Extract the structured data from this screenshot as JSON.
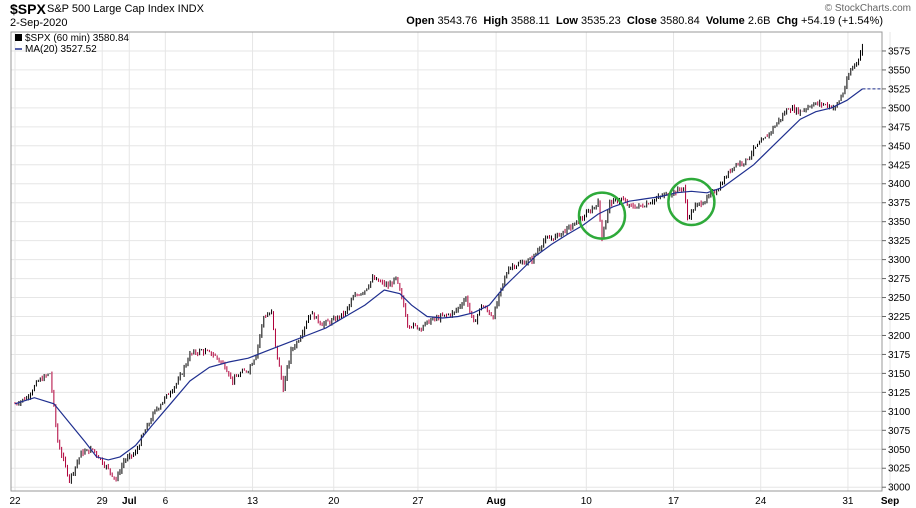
{
  "header": {
    "symbol": "$SPX",
    "name": "S&P 500 Large Cap Index INDX",
    "date": "2-Sep-2020",
    "open_label": "Open",
    "open": "3543.76",
    "high_label": "High",
    "high": "3588.11",
    "low_label": "Low",
    "low": "3535.23",
    "close_label": "Close",
    "close": "3580.84",
    "volume_label": "Volume",
    "volume": "2.6B",
    "chg_label": "Chg",
    "chg": "+54.19 (+1.54%)",
    "copyright": "© StockCharts.com"
  },
  "legend": {
    "price": "$SPX (60 min) 3580.84",
    "ma": "MA(20) 3527.52"
  },
  "colors": {
    "up": "#000000",
    "down": "#b0003a",
    "ma": "#1f2f8f",
    "grid": "#e6e6e6",
    "circle": "#2eaa3a"
  },
  "chart_data": {
    "type": "candlestick",
    "title": "$SPX",
    "ylim": [
      2995,
      3600
    ],
    "yticks": [
      3000,
      3025,
      3050,
      3075,
      3100,
      3125,
      3150,
      3175,
      3200,
      3225,
      3250,
      3275,
      3300,
      3325,
      3350,
      3375,
      3400,
      3425,
      3450,
      3475,
      3500,
      3525,
      3550,
      3575
    ],
    "xticks": [
      "22",
      "29",
      "Jul",
      "6",
      "13",
      "20",
      "27",
      "Aug",
      "10",
      "17",
      "24",
      "31",
      "Sep"
    ],
    "price_path": [
      [
        0,
        3110
      ],
      [
        3,
        3118
      ],
      [
        6,
        3140
      ],
      [
        9,
        3150
      ],
      [
        11,
        3060
      ],
      [
        14,
        3010
      ],
      [
        17,
        3045
      ],
      [
        20,
        3050
      ],
      [
        23,
        3030
      ],
      [
        26,
        3010
      ],
      [
        28,
        3035
      ],
      [
        31,
        3045
      ],
      [
        33,
        3070
      ],
      [
        36,
        3100
      ],
      [
        39,
        3120
      ],
      [
        42,
        3140
      ],
      [
        45,
        3175
      ],
      [
        48,
        3180
      ],
      [
        51,
        3175
      ],
      [
        54,
        3160
      ],
      [
        56,
        3140
      ],
      [
        58,
        3150
      ],
      [
        60,
        3155
      ],
      [
        62,
        3175
      ],
      [
        64,
        3225
      ],
      [
        66,
        3230
      ],
      [
        67,
        3185
      ],
      [
        69,
        3130
      ],
      [
        71,
        3180
      ],
      [
        73,
        3195
      ],
      [
        76,
        3230
      ],
      [
        79,
        3215
      ],
      [
        82,
        3220
      ],
      [
        85,
        3230
      ],
      [
        87,
        3250
      ],
      [
        90,
        3260
      ],
      [
        92,
        3275
      ],
      [
        94,
        3270
      ],
      [
        96,
        3265
      ],
      [
        98,
        3275
      ],
      [
        100,
        3240
      ],
      [
        101,
        3215
      ],
      [
        104,
        3210
      ],
      [
        107,
        3220
      ],
      [
        110,
        3225
      ],
      [
        113,
        3230
      ],
      [
        116,
        3250
      ],
      [
        118,
        3215
      ],
      [
        120,
        3240
      ],
      [
        123,
        3225
      ],
      [
        125,
        3260
      ],
      [
        127,
        3290
      ],
      [
        130,
        3295
      ],
      [
        133,
        3300
      ],
      [
        136,
        3325
      ],
      [
        139,
        3330
      ],
      [
        142,
        3340
      ],
      [
        145,
        3350
      ],
      [
        148,
        3365
      ],
      [
        150,
        3375
      ],
      [
        151,
        3330
      ],
      [
        153,
        3375
      ],
      [
        156,
        3380
      ],
      [
        158,
        3370
      ],
      [
        161,
        3370
      ],
      [
        164,
        3378
      ],
      [
        167,
        3385
      ],
      [
        170,
        3390
      ],
      [
        172,
        3395
      ],
      [
        173,
        3355
      ],
      [
        175,
        3370
      ],
      [
        178,
        3380
      ],
      [
        181,
        3395
      ],
      [
        183,
        3410
      ],
      [
        185,
        3425
      ],
      [
        188,
        3430
      ],
      [
        190,
        3445
      ],
      [
        193,
        3460
      ],
      [
        196,
        3480
      ],
      [
        199,
        3500
      ],
      [
        202,
        3495
      ],
      [
        205,
        3505
      ],
      [
        208,
        3505
      ],
      [
        211,
        3500
      ],
      [
        213,
        3520
      ],
      [
        215,
        3550
      ],
      [
        217,
        3565
      ],
      [
        218,
        3580
      ]
    ],
    "ma_path": [
      [
        0,
        3110
      ],
      [
        5,
        3118
      ],
      [
        10,
        3110
      ],
      [
        14,
        3085
      ],
      [
        18,
        3060
      ],
      [
        21,
        3040
      ],
      [
        24,
        3036
      ],
      [
        27,
        3040
      ],
      [
        31,
        3055
      ],
      [
        35,
        3080
      ],
      [
        40,
        3110
      ],
      [
        45,
        3140
      ],
      [
        50,
        3158
      ],
      [
        55,
        3165
      ],
      [
        60,
        3170
      ],
      [
        65,
        3180
      ],
      [
        70,
        3190
      ],
      [
        75,
        3200
      ],
      [
        80,
        3210
      ],
      [
        85,
        3225
      ],
      [
        90,
        3240
      ],
      [
        95,
        3260
      ],
      [
        99,
        3255
      ],
      [
        102,
        3240
      ],
      [
        106,
        3225
      ],
      [
        110,
        3223
      ],
      [
        114,
        3225
      ],
      [
        118,
        3230
      ],
      [
        122,
        3240
      ],
      [
        126,
        3265
      ],
      [
        130,
        3285
      ],
      [
        134,
        3305
      ],
      [
        138,
        3320
      ],
      [
        142,
        3333
      ],
      [
        146,
        3345
      ],
      [
        150,
        3360
      ],
      [
        154,
        3370
      ],
      [
        158,
        3377
      ],
      [
        162,
        3380
      ],
      [
        166,
        3383
      ],
      [
        170,
        3388
      ],
      [
        174,
        3390
      ],
      [
        178,
        3388
      ],
      [
        182,
        3395
      ],
      [
        186,
        3410
      ],
      [
        190,
        3425
      ],
      [
        194,
        3445
      ],
      [
        198,
        3465
      ],
      [
        202,
        3485
      ],
      [
        206,
        3495
      ],
      [
        210,
        3500
      ],
      [
        214,
        3510
      ],
      [
        218,
        3525
      ]
    ],
    "annotations": [
      {
        "shape": "circle",
        "x": 151,
        "y": 3358
      },
      {
        "shape": "circle",
        "x": 174,
        "y": 3376
      }
    ]
  }
}
